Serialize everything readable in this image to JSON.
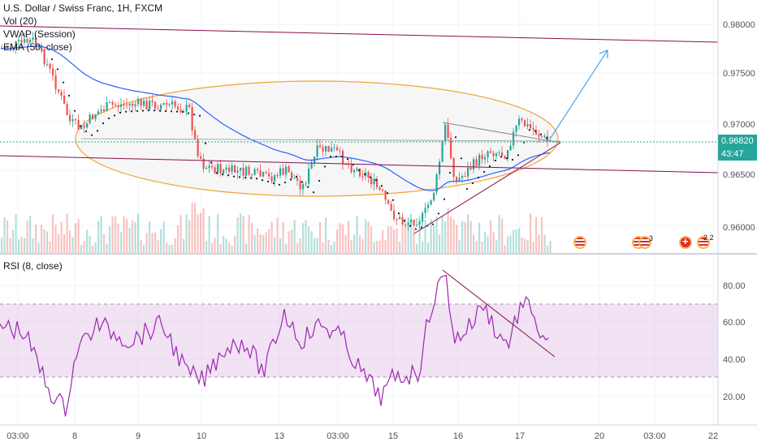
{
  "header": {
    "symbol_line": "U.S. Dollar / Swiss Franc, 1H, FXCM",
    "indicators": [
      "Vol (20)",
      "VWAP (Session)",
      "EMA (50, close)"
    ]
  },
  "rsi_pane": {
    "label": "RSI (8, close)"
  },
  "price_axis": {
    "ticks": [
      "0.98000",
      "0.97500",
      "0.97000",
      "0.96500",
      "0.96000"
    ],
    "current_price": "0.96820",
    "countdown": "43:47"
  },
  "rsi_axis": {
    "ticks": [
      "80.00",
      "60.00",
      "40.00",
      "20.00"
    ]
  },
  "time_axis": {
    "labels": [
      "03:00",
      "8",
      "9",
      "10",
      "13",
      "03:00",
      "15",
      "16",
      "17",
      "20",
      "03:00",
      "22"
    ]
  },
  "events": [
    {
      "flag": "us-flag-icon",
      "count": ""
    },
    {
      "flag": "us-flag-icon",
      "count": "3"
    },
    {
      "flag": "swiss-flag-icon",
      "count": ""
    },
    {
      "flag": "us-flag-icon",
      "count": "2 2"
    }
  ],
  "colors": {
    "bull": "#26a69a",
    "bear": "#ef5350",
    "ema": "#2962ff",
    "vwap": "#131722",
    "channel": "#880e4f",
    "ellipse": "#f57f17",
    "arrow": "#2196f3",
    "rsi": "#9c27b0",
    "rsi_band": "#e1bee7",
    "price_tag": "#26a69a",
    "triangle": "#880e4f"
  }
}
